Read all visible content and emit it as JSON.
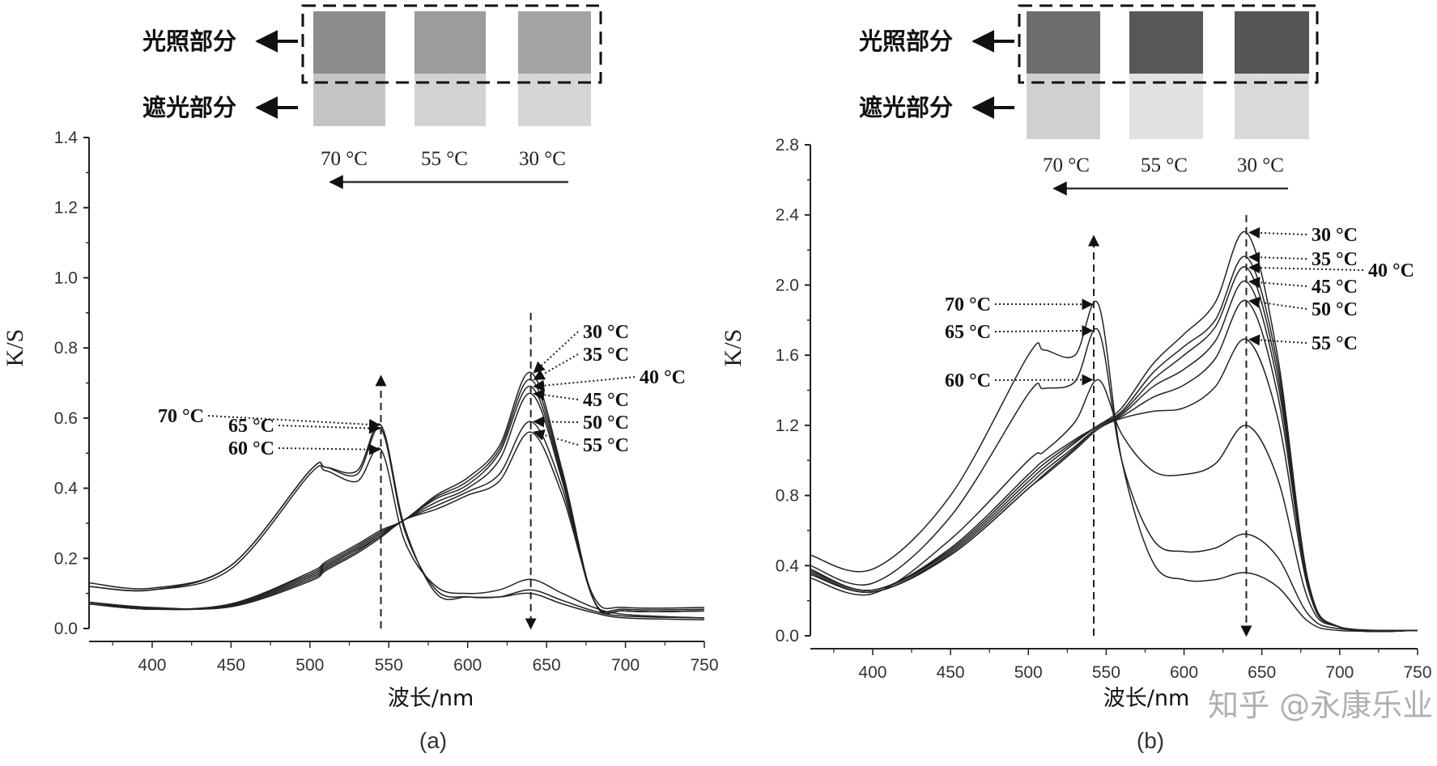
{
  "chart_data": [
    {
      "type": "line",
      "panel_label": "(a)",
      "xlabel": "波长/nm",
      "ylabel": "K/S",
      "xlim": [
        360,
        750
      ],
      "ylim": [
        0,
        1.4
      ],
      "xticks": [
        "400",
        "450",
        "500",
        "550",
        "600",
        "650",
        "700",
        "750"
      ],
      "yticks": [
        "0.0",
        "0.2",
        "0.4",
        "0.6",
        "0.8",
        "1.0",
        "1.2",
        "1.4"
      ],
      "grid": false,
      "x": [
        360,
        400,
        450,
        500,
        510,
        530,
        545,
        560,
        580,
        600,
        620,
        640,
        660,
        680,
        700,
        750
      ],
      "series": [
        {
          "values": [
            0.07,
            0.055,
            0.07,
            0.16,
            0.19,
            0.24,
            0.28,
            0.31,
            0.38,
            0.43,
            0.52,
            0.73,
            0.45,
            0.08,
            0.05,
            0.05
          ]
        },
        {
          "values": [
            0.07,
            0.055,
            0.07,
            0.155,
            0.185,
            0.235,
            0.275,
            0.31,
            0.375,
            0.42,
            0.51,
            0.71,
            0.44,
            0.08,
            0.05,
            0.05
          ]
        },
        {
          "values": [
            0.07,
            0.055,
            0.068,
            0.15,
            0.18,
            0.23,
            0.27,
            0.31,
            0.37,
            0.41,
            0.5,
            0.69,
            0.43,
            0.08,
            0.05,
            0.05
          ]
        },
        {
          "values": [
            0.075,
            0.055,
            0.066,
            0.145,
            0.175,
            0.225,
            0.265,
            0.31,
            0.36,
            0.4,
            0.48,
            0.67,
            0.42,
            0.08,
            0.05,
            0.05
          ]
        },
        {
          "values": [
            0.075,
            0.058,
            0.064,
            0.14,
            0.17,
            0.22,
            0.265,
            0.31,
            0.35,
            0.39,
            0.44,
            0.59,
            0.4,
            0.08,
            0.055,
            0.055
          ]
        },
        {
          "values": [
            0.075,
            0.06,
            0.062,
            0.135,
            0.165,
            0.215,
            0.26,
            0.31,
            0.34,
            0.38,
            0.42,
            0.56,
            0.38,
            0.09,
            0.06,
            0.06
          ]
        },
        {
          "values": [
            0.12,
            0.11,
            0.17,
            0.44,
            0.45,
            0.42,
            0.51,
            0.25,
            0.12,
            0.1,
            0.11,
            0.14,
            0.1,
            0.06,
            0.04,
            0.03
          ]
        },
        {
          "values": [
            0.12,
            0.11,
            0.18,
            0.45,
            0.46,
            0.44,
            0.57,
            0.28,
            0.11,
            0.09,
            0.09,
            0.11,
            0.08,
            0.05,
            0.035,
            0.03
          ]
        },
        {
          "values": [
            0.13,
            0.115,
            0.18,
            0.45,
            0.46,
            0.45,
            0.58,
            0.29,
            0.1,
            0.09,
            0.09,
            0.1,
            0.07,
            0.045,
            0.03,
            0.025
          ]
        }
      ],
      "annotations": [
        {
          "text": "30 °C",
          "x": 640,
          "y": 0.73
        },
        {
          "text": "35 °C",
          "x": 640,
          "y": 0.71
        },
        {
          "text": "40 °C",
          "x": 640,
          "y": 0.69
        },
        {
          "text": "45 °C",
          "x": 640,
          "y": 0.67
        },
        {
          "text": "50 °C",
          "x": 640,
          "y": 0.59
        },
        {
          "text": "55 °C",
          "x": 640,
          "y": 0.56
        },
        {
          "text": "70 °C",
          "x": 545,
          "y": 0.58
        },
        {
          "text": "65 °C",
          "x": 545,
          "y": 0.57
        },
        {
          "text": "60 °C",
          "x": 545,
          "y": 0.51
        }
      ],
      "photo": {
        "row_labels": [
          "光照部分",
          "遮光部分"
        ],
        "temperatures": [
          "70 °C",
          "55 °C",
          "30 °C"
        ],
        "lit_colors": [
          "#8c8c8c",
          "#9c9c9c",
          "#a3a3a3"
        ],
        "dark_colors": [
          "#c4c4c4",
          "#d2d2d2",
          "#d6d6d6"
        ]
      }
    },
    {
      "type": "line",
      "panel_label": "(b)",
      "xlabel": "波长/nm",
      "ylabel": "K/S",
      "xlim": [
        360,
        750
      ],
      "ylim": [
        0,
        2.8
      ],
      "xticks": [
        "400",
        "450",
        "500",
        "550",
        "600",
        "650",
        "700",
        "750"
      ],
      "yticks": [
        "0.0",
        "0.4",
        "0.8",
        "1.2",
        "1.6",
        "2.0",
        "2.4",
        "2.8"
      ],
      "grid": false,
      "x": [
        360,
        400,
        450,
        500,
        510,
        530,
        545,
        560,
        580,
        600,
        620,
        640,
        660,
        680,
        700,
        750
      ],
      "series": [
        {
          "values": [
            0.38,
            0.26,
            0.5,
            0.92,
            1.0,
            1.12,
            1.2,
            1.3,
            1.55,
            1.72,
            1.9,
            2.3,
            1.6,
            0.3,
            0.05,
            0.03
          ]
        },
        {
          "values": [
            0.37,
            0.26,
            0.49,
            0.9,
            0.98,
            1.11,
            1.2,
            1.28,
            1.5,
            1.65,
            1.8,
            2.16,
            1.55,
            0.3,
            0.05,
            0.03
          ]
        },
        {
          "values": [
            0.37,
            0.26,
            0.48,
            0.88,
            0.96,
            1.1,
            1.2,
            1.27,
            1.46,
            1.6,
            1.76,
            2.1,
            1.5,
            0.3,
            0.05,
            0.03
          ]
        },
        {
          "values": [
            0.36,
            0.25,
            0.47,
            0.86,
            0.94,
            1.08,
            1.19,
            1.26,
            1.42,
            1.52,
            1.68,
            2.02,
            1.45,
            0.3,
            0.05,
            0.03
          ]
        },
        {
          "values": [
            0.35,
            0.25,
            0.46,
            0.84,
            0.92,
            1.07,
            1.19,
            1.25,
            1.36,
            1.43,
            1.58,
            1.91,
            1.38,
            0.28,
            0.05,
            0.03
          ]
        },
        {
          "values": [
            0.35,
            0.25,
            0.46,
            0.84,
            0.91,
            1.06,
            1.18,
            1.24,
            1.28,
            1.3,
            1.42,
            1.69,
            1.25,
            0.26,
            0.05,
            0.03
          ]
        },
        {
          "values": [
            0.33,
            0.24,
            0.55,
            1.0,
            1.05,
            1.22,
            1.46,
            1.15,
            0.94,
            0.92,
            0.98,
            1.2,
            0.9,
            0.2,
            0.05,
            0.03
          ]
        },
        {
          "values": [
            0.4,
            0.3,
            0.68,
            1.38,
            1.41,
            1.45,
            1.74,
            1.0,
            0.55,
            0.48,
            0.5,
            0.58,
            0.45,
            0.12,
            0.04,
            0.03
          ]
        },
        {
          "values": [
            0.46,
            0.38,
            0.8,
            1.6,
            1.63,
            1.6,
            1.89,
            1.0,
            0.42,
            0.32,
            0.32,
            0.36,
            0.28,
            0.08,
            0.03,
            0.03
          ]
        }
      ],
      "annotations": [
        {
          "text": "30 °C",
          "x": 640,
          "y": 2.3
        },
        {
          "text": "35 °C",
          "x": 640,
          "y": 2.16
        },
        {
          "text": "40 °C",
          "x": 640,
          "y": 2.1
        },
        {
          "text": "45 °C",
          "x": 640,
          "y": 2.02
        },
        {
          "text": "50 °C",
          "x": 640,
          "y": 1.91
        },
        {
          "text": "55 °C",
          "x": 640,
          "y": 1.69
        },
        {
          "text": "70 °C",
          "x": 542,
          "y": 1.89
        },
        {
          "text": "65 °C",
          "x": 542,
          "y": 1.74
        },
        {
          "text": "60 °C",
          "x": 542,
          "y": 1.46
        }
      ],
      "photo": {
        "row_labels": [
          "光照部分",
          "遮光部分"
        ],
        "temperatures": [
          "70 °C",
          "55 °C",
          "30 °C"
        ],
        "lit_colors": [
          "#6e6e6e",
          "#575757",
          "#555555"
        ],
        "dark_colors": [
          "#d0d0d0",
          "#e2e2e2",
          "#d9d9d9"
        ]
      }
    }
  ],
  "watermark": "知乎 @永康乐业"
}
